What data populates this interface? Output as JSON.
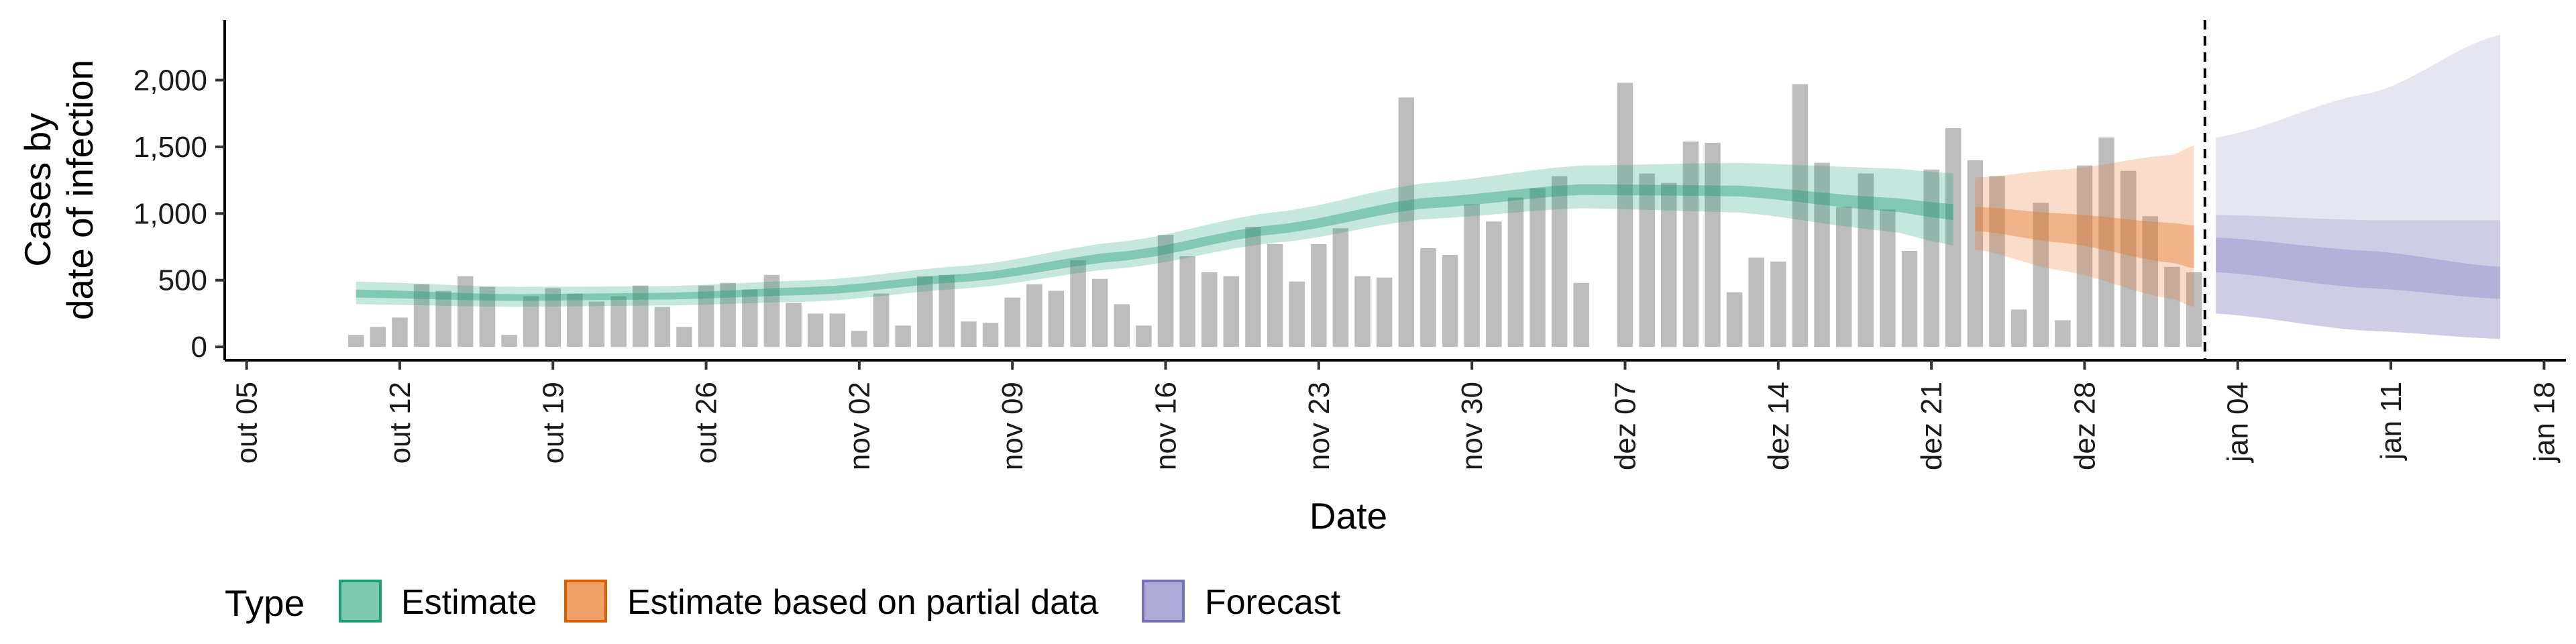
{
  "chart_data": {
    "type": "bar",
    "xlabel": "Date",
    "ylabel_lines": [
      "Cases by",
      "date of infection"
    ],
    "y_ticks": [
      0,
      500,
      1000,
      1500,
      2000
    ],
    "y_tick_labels": [
      "0",
      "500",
      "1,000",
      "1,500",
      "2,000"
    ],
    "ylim": [
      -100,
      2450
    ],
    "x_range": [
      "2020-10-04",
      "2021-01-19"
    ],
    "x_ticks": [
      "2020-10-05",
      "2020-10-12",
      "2020-10-19",
      "2020-10-26",
      "2020-11-02",
      "2020-11-09",
      "2020-11-16",
      "2020-11-23",
      "2020-11-30",
      "2020-12-07",
      "2020-12-14",
      "2020-12-21",
      "2020-12-28",
      "2021-01-04",
      "2021-01-11",
      "2021-01-18"
    ],
    "x_tick_labels": [
      "out 05",
      "out 12",
      "out 19",
      "out 26",
      "nov 02",
      "nov 09",
      "nov 16",
      "nov 23",
      "nov 30",
      "dez 07",
      "dez 14",
      "dez 21",
      "dez 28",
      "jan 04",
      "jan 11",
      "jan 18"
    ],
    "vline_date": "2021-01-02",
    "colors": {
      "bars": "#bdbdbd",
      "Estimate": "#1b9e77",
      "Estimate based on partial data": "#e6782a",
      "Forecast": "#8c88c4",
      "axis": "#000000"
    },
    "bars": {
      "start_date": "2020-10-10",
      "values": [
        90,
        150,
        220,
        470,
        420,
        530,
        450,
        90,
        380,
        440,
        400,
        340,
        380,
        460,
        300,
        150,
        460,
        480,
        430,
        540,
        330,
        250,
        250,
        120,
        400,
        160,
        530,
        540,
        190,
        180,
        370,
        470,
        420,
        650,
        510,
        320,
        160,
        840,
        680,
        560,
        530,
        900,
        770,
        490,
        770,
        890,
        530,
        520,
        1870,
        740,
        690,
        1070,
        940,
        1120,
        1190,
        1280,
        480,
        0,
        1980,
        1300,
        1230,
        1540,
        1530,
        410,
        670,
        640,
        1970,
        1380,
        1050,
        1300,
        1030,
        720,
        1330,
        1640,
        1400,
        1280,
        280,
        1080,
        200,
        1360,
        1570,
        1320,
        980,
        600,
        560
      ]
    },
    "series": [
      {
        "name": "Estimate",
        "dates": [
          "2020-10-10",
          "2020-10-17",
          "2020-10-24",
          "2020-10-31",
          "2020-11-07",
          "2020-11-14",
          "2020-11-21",
          "2020-11-28",
          "2020-12-05",
          "2020-12-12",
          "2020-12-19",
          "2020-12-22"
        ],
        "median": [
          400,
          370,
          380,
          420,
          520,
          680,
          880,
          1080,
          1180,
          1170,
          1070,
          1010
        ],
        "inner_lower": [
          370,
          345,
          355,
          390,
          490,
          645,
          845,
          1040,
          1140,
          1130,
          1020,
          950
        ],
        "inner_upper": [
          430,
          395,
          405,
          450,
          550,
          715,
          915,
          1120,
          1220,
          1210,
          1120,
          1070
        ],
        "outer_lower": [
          320,
          300,
          310,
          340,
          440,
          590,
          780,
          960,
          1040,
          1010,
          870,
          760
        ],
        "outer_upper": [
          490,
          450,
          455,
          500,
          610,
          790,
          1010,
          1230,
          1360,
          1380,
          1340,
          1300
        ]
      },
      {
        "name": "Estimate based on partial data",
        "dates": [
          "2020-12-23",
          "2020-12-27",
          "2021-01-01",
          "2021-01-02"
        ],
        "median": [
          960,
          890,
          780,
          750
        ],
        "inner_lower": [
          870,
          780,
          630,
          590
        ],
        "inner_upper": [
          1050,
          1000,
          930,
          910
        ],
        "outer_lower": [
          730,
          570,
          360,
          300
        ],
        "outer_upper": [
          1270,
          1330,
          1440,
          1510
        ]
      },
      {
        "name": "Forecast",
        "dates": [
          "2021-01-03",
          "2021-01-10",
          "2021-01-16"
        ],
        "median": [
          700,
          580,
          470
        ],
        "inner_lower": [
          560,
          440,
          360
        ],
        "inner_upper": [
          820,
          720,
          600
        ],
        "outer_lower": [
          250,
          120,
          60
        ],
        "outer_upper": [
          990,
          950,
          950
        ],
        "outermost_lower": [
          250,
          120,
          60
        ],
        "outermost_upper": [
          1570,
          1900,
          2340
        ]
      }
    ],
    "legend": {
      "title": "Type",
      "position": "bottom",
      "items": [
        "Estimate",
        "Estimate based on partial data",
        "Forecast"
      ]
    }
  }
}
